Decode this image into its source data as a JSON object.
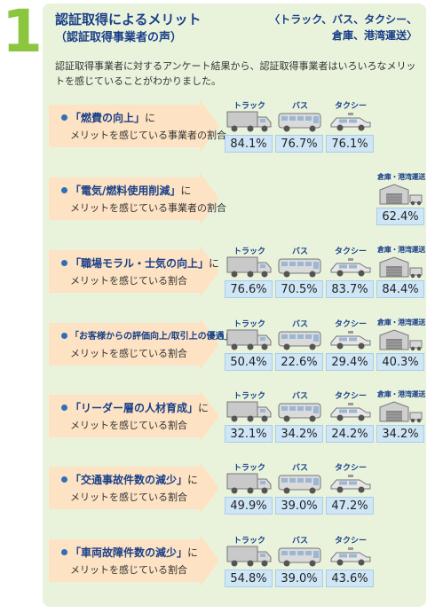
{
  "section_number": "1",
  "header": {
    "title": "認証取得によるメリット",
    "subtitle": "（認証取得事業者の声）",
    "scope_line1": "〈トラック、バス、タクシー、",
    "scope_line2": "倉庫、港湾運送〉"
  },
  "intro_text": "認証取得事業者に対するアンケート結果から、認証取得事業者はいろいろなメリットを感じていることがわかりました。",
  "vehicle_labels": {
    "truck": "トラック",
    "bus": "バス",
    "taxi": "タクシー",
    "warehouse": "倉庫・港湾運送"
  },
  "rows": [
    {
      "label": "「燃費の向上」",
      "suffix": "に",
      "sub": "メリットを感じている事業者の割合",
      "cells": [
        {
          "label": "トラック",
          "value": "84.1%"
        },
        {
          "label": "バス",
          "value": "76.7%"
        },
        {
          "label": "タクシー",
          "value": "76.1%"
        }
      ]
    },
    {
      "label": "「電気/燃料使用削減」",
      "suffix": "に",
      "sub": "メリットを感じている事業者の割合",
      "cells": [
        {
          "label": "倉庫・港湾運送",
          "value": "62.4%"
        }
      ]
    },
    {
      "label": "「職場モラル・士気の向上」",
      "suffix": "に",
      "sub": "メリットを感じている割合",
      "cells": [
        {
          "label": "トラック",
          "value": "76.6%"
        },
        {
          "label": "バス",
          "value": "70.5%"
        },
        {
          "label": "タクシー",
          "value": "83.7%"
        },
        {
          "label": "倉庫・港湾運送",
          "value": "84.4%"
        }
      ]
    },
    {
      "label": "「お客様からの評価向上/取引上の優遇」",
      "suffix": "に",
      "sub": "メリットを感じている割合",
      "cells": [
        {
          "label": "トラック",
          "value": "50.4%"
        },
        {
          "label": "バス",
          "value": "22.6%"
        },
        {
          "label": "タクシー",
          "value": "29.4%"
        },
        {
          "label": "倉庫・港湾運送",
          "value": "40.3%"
        }
      ]
    },
    {
      "label": "「リーダー層の人材育成」",
      "suffix": "に",
      "sub": "メリットを感じている割合",
      "cells": [
        {
          "label": "トラック",
          "value": "32.1%"
        },
        {
          "label": "バス",
          "value": "34.2%"
        },
        {
          "label": "タクシー",
          "value": "24.2%"
        },
        {
          "label": "倉庫・港湾運送",
          "value": "34.2%"
        }
      ]
    },
    {
      "label": "「交通事故件数の減少」",
      "suffix": "に",
      "sub": "メリットを感じている割合",
      "cells": [
        {
          "label": "トラック",
          "value": "49.9%"
        },
        {
          "label": "バス",
          "value": "39.0%"
        },
        {
          "label": "タクシー",
          "value": "47.2%"
        }
      ]
    },
    {
      "label": "「車両故障件数の減少」",
      "suffix": "に",
      "sub": "メリットを感じている割合",
      "cells": [
        {
          "label": "トラック",
          "value": "54.8%"
        },
        {
          "label": "バス",
          "value": "39.0%"
        },
        {
          "label": "タクシー",
          "value": "43.6%"
        }
      ]
    }
  ],
  "colors": {
    "accent_green": "#8cc63f",
    "panel_bg": "#e9f3dc",
    "heading_blue": "#1a3f88",
    "arrow_fill": "#fde3c3",
    "value_box": "#cfe6f7"
  }
}
